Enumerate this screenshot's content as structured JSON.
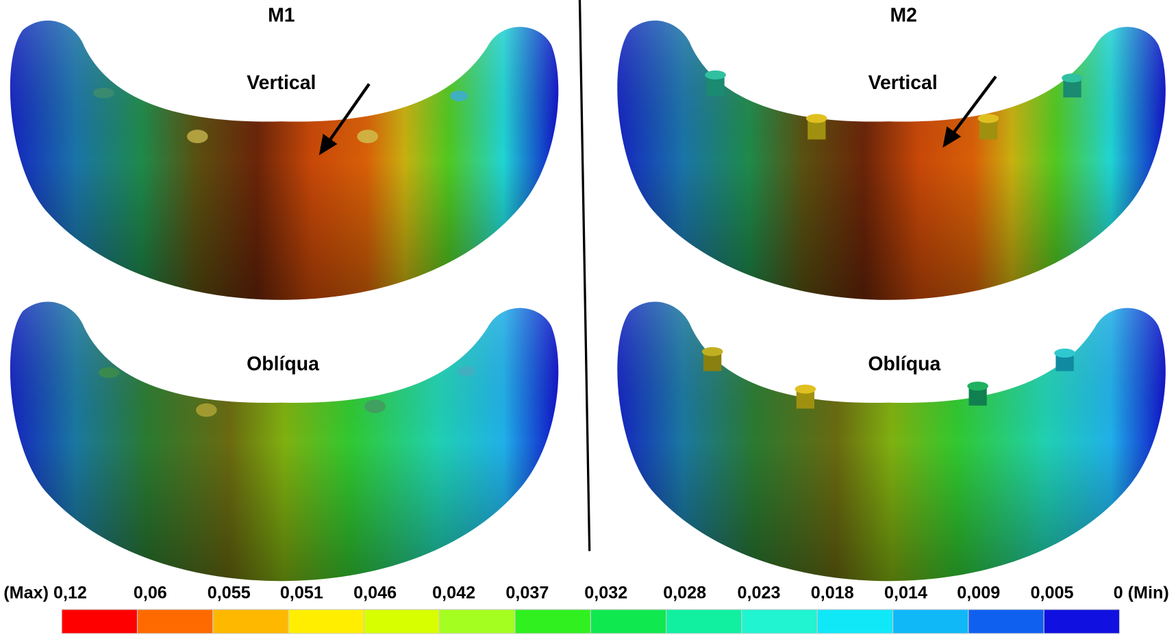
{
  "panels": [
    {
      "title": "M1",
      "views": [
        "Vertical",
        "Oblíqua"
      ]
    },
    {
      "title": "M2",
      "views": [
        "Vertical",
        "Oblíqua"
      ]
    }
  ],
  "legend": {
    "labels": [
      "(Max) 0,12",
      "0,06",
      "0,055",
      "0,051",
      "0,046",
      "0,042",
      "0,037",
      "0,032",
      "0,028",
      "0,023",
      "0,018",
      "0,014",
      "0,009",
      "0,005",
      "0 (Min)"
    ],
    "colors": [
      "#ff0000",
      "#ff6a00",
      "#ffb800",
      "#ffee00",
      "#d8ff00",
      "#a4ff20",
      "#30f020",
      "#10e850",
      "#10f0a0",
      "#20f4d0",
      "#10e8f8",
      "#10b8f8",
      "#1060f0",
      "#1010e0"
    ]
  }
}
